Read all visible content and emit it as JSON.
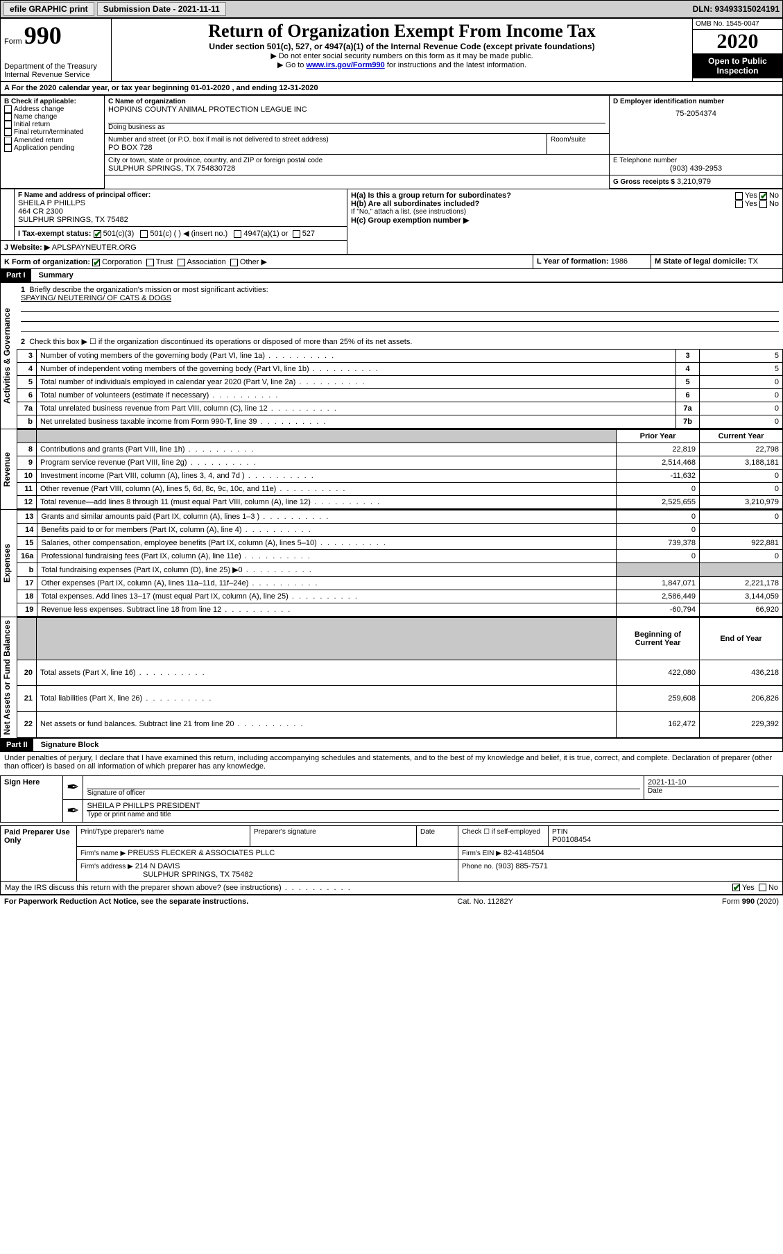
{
  "topbar": {
    "efile": "efile GRAPHIC print",
    "sub_label": "Submission Date - 2021-11-11",
    "dln": "DLN: 93493315024191"
  },
  "header": {
    "form_word": "Form",
    "form_num": "990",
    "title": "Return of Organization Exempt From Income Tax",
    "subtitle": "Under section 501(c), 527, or 4947(a)(1) of the Internal Revenue Code (except private foundations)",
    "note1": "▶ Do not enter social security numbers on this form as it may be made public.",
    "note2_pre": "▶ Go to ",
    "note2_link": "www.irs.gov/Form990",
    "note2_post": " for instructions and the latest information.",
    "omb": "OMB No. 1545-0047",
    "year": "2020",
    "open": "Open to Public Inspection",
    "dept": "Department of the Treasury\nInternal Revenue Service"
  },
  "A": {
    "line": "A For the 2020 calendar year, or tax year beginning 01-01-2020   , and ending 12-31-2020"
  },
  "B": {
    "label": "B Check if applicable:",
    "opts": [
      "Address change",
      "Name change",
      "Initial return",
      "Final return/terminated",
      "Amended return",
      "Application pending"
    ]
  },
  "C": {
    "name_label": "C Name of organization",
    "name": "HOPKINS COUNTY ANIMAL PROTECTION LEAGUE INC",
    "dba_label": "Doing business as",
    "street_label": "Number and street (or P.O. box if mail is not delivered to street address)",
    "room_label": "Room/suite",
    "street": "PO BOX 728",
    "city_label": "City or town, state or province, country, and ZIP or foreign postal code",
    "city": "SULPHUR SPRINGS, TX  754830728"
  },
  "D": {
    "label": "D Employer identification number",
    "val": "75-2054374"
  },
  "E": {
    "label": "E Telephone number",
    "val": "(903) 439-2953"
  },
  "G": {
    "label": "G Gross receipts $",
    "val": "3,210,979"
  },
  "F": {
    "label": "F  Name and address of principal officer:",
    "name": "SHEILA P PHILLPS",
    "addr1": "464 CR 2300",
    "addr2": "SULPHUR SPRINGS, TX  75482"
  },
  "H": {
    "a": "H(a)  Is this a group return for subordinates?",
    "b": "H(b)  Are all subordinates included?",
    "b_note": "If \"No,\" attach a list. (see instructions)",
    "c": "H(c)  Group exemption number ▶",
    "yes": "Yes",
    "no": "No"
  },
  "I": {
    "label": "I   Tax-exempt status:",
    "o1": "501(c)(3)",
    "o2": "501(c) (   ) ◀ (insert no.)",
    "o3": "4947(a)(1) or",
    "o4": "527"
  },
  "J": {
    "label": "J   Website: ▶",
    "val": "APLSPAYNEUTER.ORG"
  },
  "K": {
    "label": "K Form of organization:",
    "o1": "Corporation",
    "o2": "Trust",
    "o3": "Association",
    "o4": "Other ▶"
  },
  "L": {
    "label": "L Year of formation:",
    "val": "1986"
  },
  "M": {
    "label": "M State of legal domicile:",
    "val": "TX"
  },
  "part1": {
    "tag": "Part I",
    "title": "Summary"
  },
  "summary": {
    "q1": "Briefly describe the organization's mission or most significant activities:",
    "mission": "SPAYING/ NEUTERING/ OF CATS & DOGS",
    "q2": "Check this box ▶ ☐  if the organization discontinued its operations or disposed of more than 25% of its net assets.",
    "lines": [
      {
        "n": "3",
        "d": "Number of voting members of the governing body (Part VI, line 1a)",
        "b": "3",
        "v": "5"
      },
      {
        "n": "4",
        "d": "Number of independent voting members of the governing body (Part VI, line 1b)",
        "b": "4",
        "v": "5"
      },
      {
        "n": "5",
        "d": "Total number of individuals employed in calendar year 2020 (Part V, line 2a)",
        "b": "5",
        "v": "0"
      },
      {
        "n": "6",
        "d": "Total number of volunteers (estimate if necessary)",
        "b": "6",
        "v": "0"
      },
      {
        "n": "7a",
        "d": "Total unrelated business revenue from Part VIII, column (C), line 12",
        "b": "7a",
        "v": "0"
      },
      {
        "n": "b",
        "d": "Net unrelated business taxable income from Form 990-T, line 39",
        "b": "7b",
        "v": "0"
      }
    ],
    "col_prior": "Prior Year",
    "col_current": "Current Year",
    "col_begin": "Beginning of Current Year",
    "col_end": "End of Year"
  },
  "revenue": [
    {
      "n": "8",
      "d": "Contributions and grants (Part VIII, line 1h)",
      "p": "22,819",
      "c": "22,798"
    },
    {
      "n": "9",
      "d": "Program service revenue (Part VIII, line 2g)",
      "p": "2,514,468",
      "c": "3,188,181"
    },
    {
      "n": "10",
      "d": "Investment income (Part VIII, column (A), lines 3, 4, and 7d )",
      "p": "-11,632",
      "c": "0"
    },
    {
      "n": "11",
      "d": "Other revenue (Part VIII, column (A), lines 5, 6d, 8c, 9c, 10c, and 11e)",
      "p": "0",
      "c": "0"
    },
    {
      "n": "12",
      "d": "Total revenue—add lines 8 through 11 (must equal Part VIII, column (A), line 12)",
      "p": "2,525,655",
      "c": "3,210,979"
    }
  ],
  "expenses": [
    {
      "n": "13",
      "d": "Grants and similar amounts paid (Part IX, column (A), lines 1–3 )",
      "p": "0",
      "c": "0"
    },
    {
      "n": "14",
      "d": "Benefits paid to or for members (Part IX, column (A), line 4)",
      "p": "0",
      "c": ""
    },
    {
      "n": "15",
      "d": "Salaries, other compensation, employee benefits (Part IX, column (A), lines 5–10)",
      "p": "739,378",
      "c": "922,881"
    },
    {
      "n": "16a",
      "d": "Professional fundraising fees (Part IX, column (A), line 11e)",
      "p": "0",
      "c": "0"
    },
    {
      "n": "b",
      "d": "Total fundraising expenses (Part IX, column (D), line 25) ▶0",
      "p": "__shade__",
      "c": "__shade__"
    },
    {
      "n": "17",
      "d": "Other expenses (Part IX, column (A), lines 11a–11d, 11f–24e)",
      "p": "1,847,071",
      "c": "2,221,178"
    },
    {
      "n": "18",
      "d": "Total expenses. Add lines 13–17 (must equal Part IX, column (A), line 25)",
      "p": "2,586,449",
      "c": "3,144,059"
    },
    {
      "n": "19",
      "d": "Revenue less expenses. Subtract line 18 from line 12",
      "p": "-60,794",
      "c": "66,920"
    }
  ],
  "netassets": [
    {
      "n": "20",
      "d": "Total assets (Part X, line 16)",
      "p": "422,080",
      "c": "436,218"
    },
    {
      "n": "21",
      "d": "Total liabilities (Part X, line 26)",
      "p": "259,608",
      "c": "206,826"
    },
    {
      "n": "22",
      "d": "Net assets or fund balances. Subtract line 21 from line 20",
      "p": "162,472",
      "c": "229,392"
    }
  ],
  "vlabels": {
    "ag": "Activities & Governance",
    "rev": "Revenue",
    "exp": "Expenses",
    "na": "Net Assets or Fund Balances"
  },
  "part2": {
    "tag": "Part II",
    "title": "Signature Block"
  },
  "sig": {
    "perjury": "Under penalties of perjury, I declare that I have examined this return, including accompanying schedules and statements, and to the best of my knowledge and belief, it is true, correct, and complete. Declaration of preparer (other than officer) is based on all information of which preparer has any knowledge.",
    "sign_here": "Sign Here",
    "sig_officer": "Signature of officer",
    "date_label": "Date",
    "date_val": "2021-11-10",
    "officer_name": "SHEILA P PHILLPS  PRESIDENT",
    "type_name": "Type or print name and title",
    "paid": "Paid Preparer Use Only",
    "prep_name_label": "Print/Type preparer's name",
    "prep_sig_label": "Preparer's signature",
    "check_self": "Check ☐ if self-employed",
    "ptin_label": "PTIN",
    "ptin": "P00108454",
    "firm_name_label": "Firm's name    ▶",
    "firm_name": "PREUSS FLECKER & ASSOCIATES PLLC",
    "firm_ein_label": "Firm's EIN ▶",
    "firm_ein": "82-4148504",
    "firm_addr_label": "Firm's address ▶",
    "firm_addr1": "214 N DAVIS",
    "firm_addr2": "SULPHUR SPRINGS, TX  75482",
    "phone_label": "Phone no.",
    "phone": "(903) 885-7571",
    "discuss": "May the IRS discuss this return with the preparer shown above? (see instructions)"
  },
  "footer": {
    "pra": "For Paperwork Reduction Act Notice, see the separate instructions.",
    "cat": "Cat. No. 11282Y",
    "form": "Form 990 (2020)"
  }
}
